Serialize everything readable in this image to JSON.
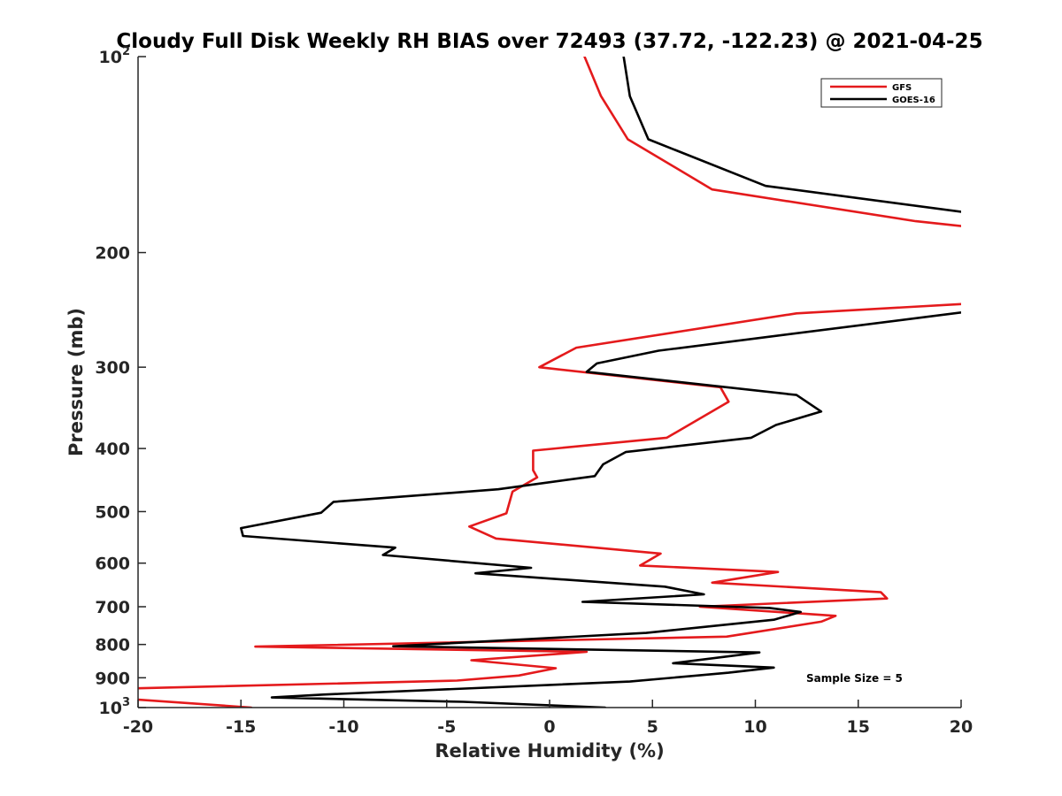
{
  "chart_data": {
    "type": "line",
    "title": "Cloudy Full Disk Weekly RH BIAS over 72493 (37.72, -122.23) @ 2021-04-25",
    "xlabel": "Relative Humidity (%)",
    "ylabel": "Pressure (mb)",
    "xlim": [
      -20,
      20
    ],
    "ylim": [
      100,
      1000
    ],
    "yscale": "log",
    "yreverse": true,
    "xticks": [
      -20,
      -15,
      -10,
      -5,
      0,
      5,
      10,
      15,
      20
    ],
    "yticks": [
      100,
      200,
      300,
      400,
      500,
      600,
      700,
      800,
      900,
      1000
    ],
    "ytick_labels": [
      {
        "value": 100,
        "base": "10",
        "exp": "2"
      },
      {
        "value": 200,
        "base": "200",
        "exp": ""
      },
      {
        "value": 300,
        "base": "300",
        "exp": ""
      },
      {
        "value": 400,
        "base": "400",
        "exp": ""
      },
      {
        "value": 500,
        "base": "500",
        "exp": ""
      },
      {
        "value": 600,
        "base": "600",
        "exp": ""
      },
      {
        "value": 700,
        "base": "700",
        "exp": ""
      },
      {
        "value": 800,
        "base": "800",
        "exp": ""
      },
      {
        "value": 900,
        "base": "900",
        "exp": ""
      },
      {
        "value": 1000,
        "base": "10",
        "exp": "3"
      }
    ],
    "grid": false,
    "legend_position": "top-right",
    "annotation": "Sample Size = 5",
    "series": [
      {
        "name": "GFS",
        "color": "#e41a1c",
        "points": [
          [
            1.7,
            100
          ],
          [
            2.5,
            115
          ],
          [
            3.8,
            134
          ],
          [
            7.9,
            160
          ],
          [
            17.8,
            179
          ],
          [
            22,
            185
          ],
          [
            21,
            239
          ],
          [
            12,
            248
          ],
          [
            1.3,
            280
          ],
          [
            -0.5,
            300
          ],
          [
            8.3,
            322
          ],
          [
            8.7,
            339
          ],
          [
            5.7,
            385
          ],
          [
            -0.8,
            403
          ],
          [
            -0.8,
            432
          ],
          [
            -0.6,
            443
          ],
          [
            -1.8,
            466
          ],
          [
            -2.1,
            503
          ],
          [
            -3.9,
            527
          ],
          [
            -2.6,
            550
          ],
          [
            5.4,
            580
          ],
          [
            4.4,
            605
          ],
          [
            11.1,
            619
          ],
          [
            7.9,
            643
          ],
          [
            16.1,
            665
          ],
          [
            16.4,
            680
          ],
          [
            7.3,
            700
          ],
          [
            13.9,
            723
          ],
          [
            13.2,
            738
          ],
          [
            8.6,
            778
          ],
          [
            -14.3,
            806
          ],
          [
            1.8,
            821
          ],
          [
            -3.8,
            846
          ],
          [
            0.3,
            870
          ],
          [
            -1.5,
            893
          ],
          [
            -4.5,
            909
          ],
          [
            -20.5,
            935
          ],
          [
            -20.5,
            970
          ],
          [
            -14.5,
            1000
          ]
        ]
      },
      {
        "name": "GOES-16",
        "color": "#000000",
        "points": [
          [
            3.6,
            100
          ],
          [
            3.9,
            115
          ],
          [
            4.8,
            134
          ],
          [
            10.5,
            158
          ],
          [
            20.5,
            174
          ],
          [
            22,
            176
          ],
          [
            21,
            245
          ],
          [
            5.3,
            283
          ],
          [
            2.3,
            296
          ],
          [
            1.8,
            305
          ],
          [
            12.0,
            331
          ],
          [
            13.2,
            351
          ],
          [
            11.0,
            368
          ],
          [
            9.8,
            385
          ],
          [
            3.7,
            405
          ],
          [
            2.6,
            423
          ],
          [
            2.2,
            441
          ],
          [
            -2.5,
            462
          ],
          [
            -10.5,
            483
          ],
          [
            -11.1,
            502
          ],
          [
            -15.0,
            530
          ],
          [
            -14.9,
            545
          ],
          [
            -7.5,
            568
          ],
          [
            -8.1,
            583
          ],
          [
            -0.9,
            610
          ],
          [
            -3.6,
            622
          ],
          [
            5.6,
            652
          ],
          [
            7.5,
            670
          ],
          [
            1.6,
            688
          ],
          [
            10.7,
            703
          ],
          [
            12.2,
            713
          ],
          [
            10.9,
            733
          ],
          [
            4.7,
            768
          ],
          [
            -7.6,
            805
          ],
          [
            10.2,
            823
          ],
          [
            6.0,
            855
          ],
          [
            10.9,
            868
          ],
          [
            8.7,
            884
          ],
          [
            3.9,
            912
          ],
          [
            -11.0,
            955
          ],
          [
            -13.5,
            965
          ],
          [
            -4.2,
            980
          ],
          [
            2.7,
            1000
          ]
        ]
      }
    ]
  }
}
